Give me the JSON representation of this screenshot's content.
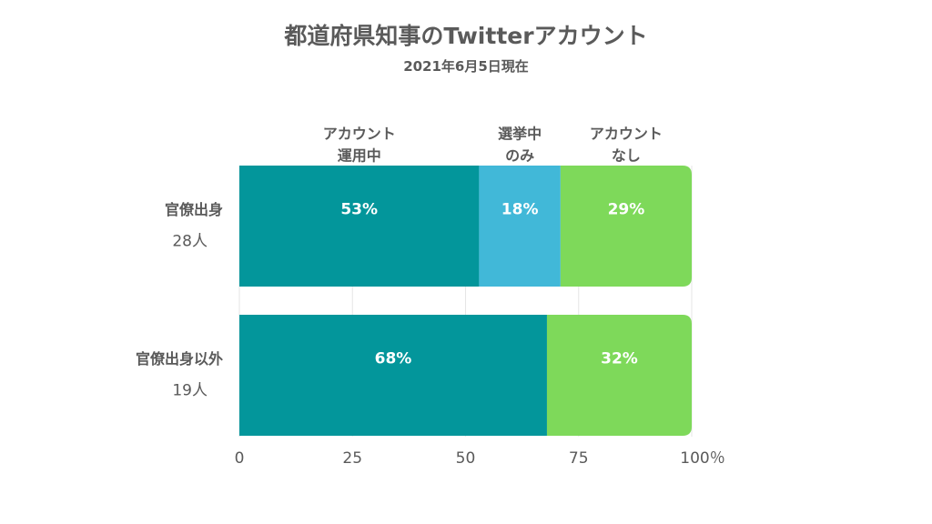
{
  "title": "都道府県知事のTwitterアカウント",
  "subtitle": "2021年6月5日現在",
  "chart_data": {
    "type": "bar",
    "orientation": "horizontal",
    "stacked": true,
    "percent_suffix": "%",
    "xlim": [
      0,
      100
    ],
    "x_ticks": [
      "0",
      "25",
      "50",
      "75",
      "100％"
    ],
    "categories": [
      {
        "label": "官僚出身",
        "count": "28人"
      },
      {
        "label": "官僚出身以外",
        "count": "19人"
      }
    ],
    "series": [
      {
        "name_lines": [
          "アカウント",
          "運用中"
        ],
        "values": [
          53,
          68
        ],
        "color": "#03969b"
      },
      {
        "name_lines": [
          "選挙中",
          "のみ"
        ],
        "values": [
          18,
          0
        ],
        "color": "#41b8d8"
      },
      {
        "name_lines": [
          "アカウント",
          "なし"
        ],
        "values": [
          29,
          32
        ],
        "color": "#7ed95a"
      }
    ],
    "grid": true
  }
}
